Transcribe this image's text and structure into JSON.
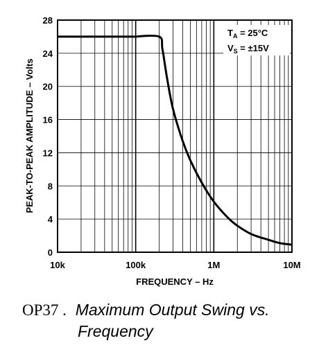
{
  "chart_data": {
    "type": "line",
    "xlabel": "FREQUENCY – Hz",
    "ylabel": "PEAK-TO-PEAK AMPLITUDE – Volts",
    "xscale": "log",
    "xlim": [
      10000,
      10000000
    ],
    "ylim": [
      0,
      28
    ],
    "yticks": [
      0,
      4,
      8,
      12,
      16,
      20,
      24,
      28
    ],
    "xticks": [
      {
        "value": 10000,
        "label": "10k"
      },
      {
        "value": 100000,
        "label": "100k"
      },
      {
        "value": 1000000,
        "label": "1M"
      },
      {
        "value": 10000000,
        "label": "10M"
      }
    ],
    "grid": true,
    "conditions": {
      "ta_main": "T",
      "ta_sub": "A",
      "ta_value": " = 25°C",
      "vs_main": "V",
      "vs_sub": "S",
      "vs_value": " = ±15V"
    },
    "series": [
      {
        "x": [
          10000,
          100000,
          200000,
          220000,
          250000,
          300000,
          400000,
          500000,
          700000,
          1000000,
          1500000,
          2000000,
          3000000,
          5000000,
          7000000,
          10000000
        ],
        "y": [
          26,
          26,
          26,
          24.5,
          21.2,
          17.3,
          13.4,
          11.1,
          8.4,
          6.1,
          4.2,
          3.2,
          2.2,
          1.5,
          1.1,
          0.9
        ]
      }
    ]
  },
  "caption": {
    "number": "OP37 .",
    "title_line1": "Maximum Output Swing vs.",
    "title_line2": "Frequency"
  }
}
